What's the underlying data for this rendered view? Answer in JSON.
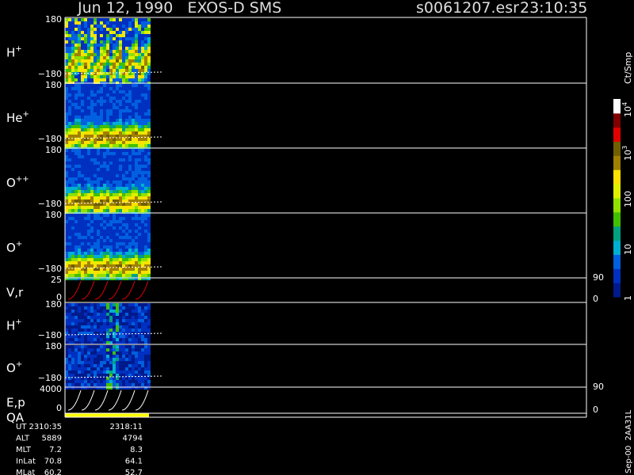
{
  "header": {
    "title": "Jun 12, 1990   EXOS-D SMS",
    "file": "s0061207.esr",
    "time": "23:10:35"
  },
  "panels": [
    {
      "label": "H",
      "sup": "+",
      "top_tick": "180",
      "bottom_tick": "−180"
    },
    {
      "label": "He",
      "sup": "+",
      "top_tick": "180",
      "bottom_tick": "−180"
    },
    {
      "label": "O",
      "sup": "++",
      "top_tick": "180",
      "bottom_tick": "−180"
    },
    {
      "label": "O",
      "sup": "+",
      "top_tick": "180",
      "bottom_tick": "−180"
    },
    {
      "label": "V,r",
      "top_tick": "25",
      "bottom_tick": "0",
      "right_ticks": [
        "90",
        "0"
      ]
    },
    {
      "label": "H",
      "sup": "+",
      "top_tick": "180",
      "bottom_tick": "−180"
    },
    {
      "label": "O",
      "sup": "+",
      "top_tick": "180",
      "bottom_tick": "−180"
    },
    {
      "label": "E,p",
      "top_tick": "4000",
      "bottom_tick": "0",
      "right_ticks": [
        "90",
        "0"
      ]
    },
    {
      "label": "QA"
    }
  ],
  "colorbar": {
    "unit": "Ct/Smp",
    "labels": [
      {
        "base": "10",
        "exp": "4"
      },
      {
        "base": "10",
        "exp": "3"
      },
      {
        "base": "100"
      },
      {
        "base": "10"
      },
      {
        "base": "1"
      }
    ]
  },
  "footer": {
    "rows": [
      [
        "UT",
        "2310:35",
        "2318:11"
      ],
      [
        "ALT",
        "5889",
        "4794"
      ],
      [
        "MLT",
        "7.2",
        "8.3"
      ],
      [
        "InLat",
        "70.8",
        "64.1"
      ],
      [
        "MLat",
        "60.2",
        "52.7"
      ]
    ],
    "stamp": "Sep-00  2AA31L"
  }
}
